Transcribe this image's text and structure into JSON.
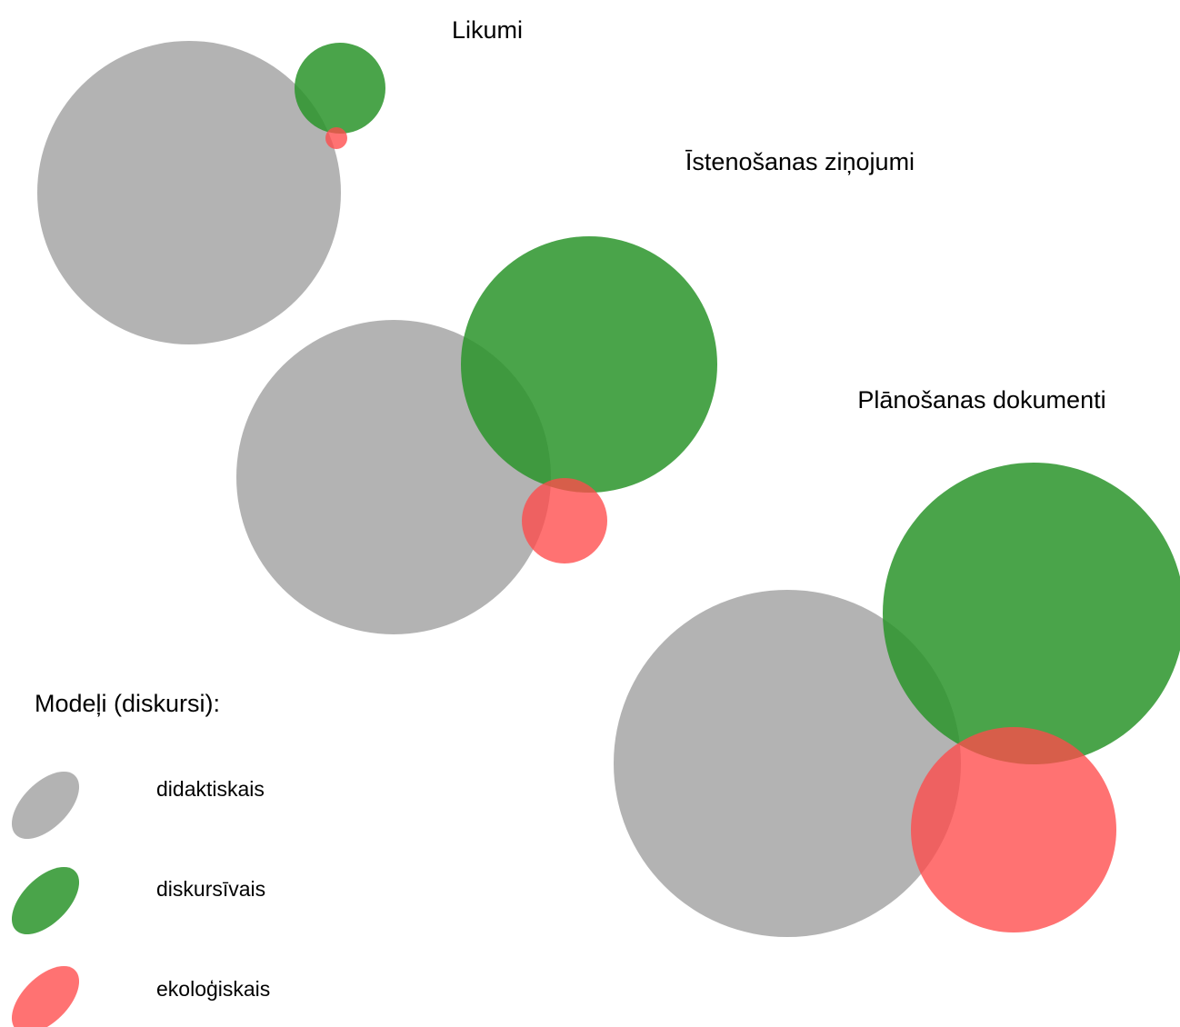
{
  "groups": [
    {
      "title": "Likumi"
    },
    {
      "title": "Īstenošanas ziņojumi"
    },
    {
      "title": "Plānošanas dokumenti"
    }
  ],
  "legend": {
    "title": "Modeļi (diskursi):",
    "items": [
      {
        "label": "didaktiskais"
      },
      {
        "label": "diskursīvais"
      },
      {
        "label": "ekoloģiskais"
      }
    ]
  }
}
